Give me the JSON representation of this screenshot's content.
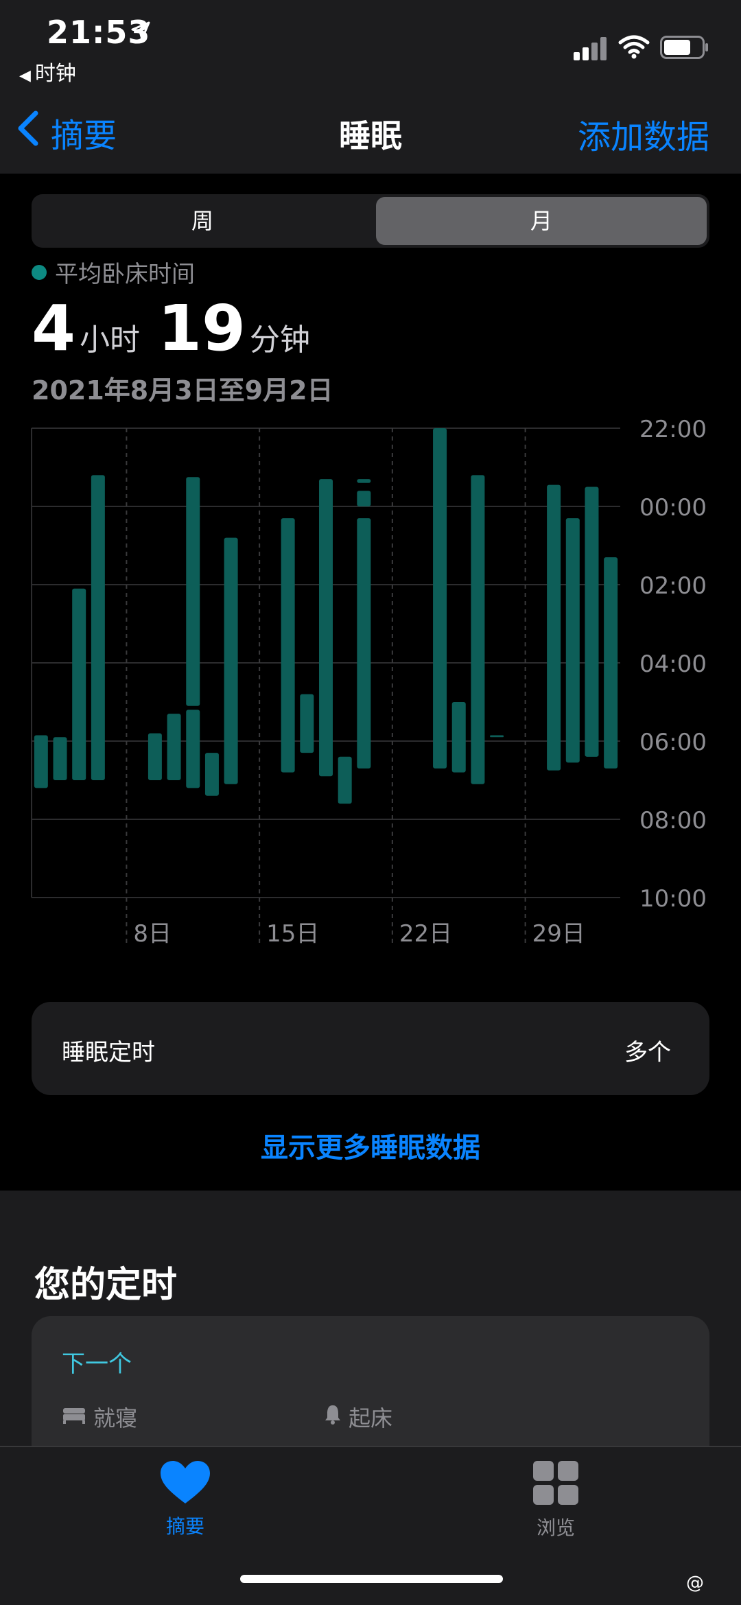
{
  "status": {
    "time": "21:53",
    "back_app": "时钟"
  },
  "nav": {
    "back": "摘要",
    "title": "睡眠",
    "add": "添加数据"
  },
  "segments": {
    "week": "周",
    "month": "月"
  },
  "summary": {
    "legend": "平均卧床时间",
    "hours": "4",
    "hours_unit": "小时",
    "minutes": "19",
    "minutes_unit": "分钟",
    "range": "2021年8月3日至9月2日"
  },
  "chart_data": {
    "type": "bar",
    "bar_color": "#0d5e58",
    "y_ticks": [
      "22:00",
      "00:00",
      "02:00",
      "04:00",
      "06:00",
      "08:00",
      "10:00"
    ],
    "ylim_hours_from_22": [
      0,
      12
    ],
    "x_ticks": [
      {
        "label": "8日",
        "day": 8
      },
      {
        "label": "15日",
        "day": 15
      },
      {
        "label": "22日",
        "day": 22
      },
      {
        "label": "29日",
        "day": 29
      }
    ],
    "day_range": [
      3,
      33
    ],
    "bars": [
      {
        "day": 3,
        "start": 7.85,
        "end": 9.2
      },
      {
        "day": 4,
        "start": 7.9,
        "end": 9.0
      },
      {
        "day": 5,
        "start": 4.1,
        "end": 9.0
      },
      {
        "day": 6,
        "start": 1.2,
        "end": 9.0
      },
      {
        "day": 9,
        "start": 7.8,
        "end": 9.0
      },
      {
        "day": 10,
        "start": 7.3,
        "end": 9.0
      },
      {
        "day": 11,
        "start": 1.25,
        "end": 7.1
      },
      {
        "day": 11,
        "start": 7.2,
        "end": 9.2
      },
      {
        "day": 12,
        "start": 8.3,
        "end": 9.4
      },
      {
        "day": 13,
        "start": 2.8,
        "end": 9.1
      },
      {
        "day": 16,
        "start": 2.3,
        "end": 8.8
      },
      {
        "day": 17,
        "start": 6.8,
        "end": 8.3
      },
      {
        "day": 18,
        "start": 1.3,
        "end": 8.9
      },
      {
        "day": 19,
        "start": 8.4,
        "end": 9.6
      },
      {
        "day": 20,
        "start": 1.3,
        "end": 1.4
      },
      {
        "day": 20,
        "start": 1.6,
        "end": 2.0
      },
      {
        "day": 20,
        "start": 2.3,
        "end": 8.7
      },
      {
        "day": 24,
        "start": 0.0,
        "end": 8.7
      },
      {
        "day": 25,
        "start": 7.0,
        "end": 8.8
      },
      {
        "day": 26,
        "start": 1.2,
        "end": 9.1
      },
      {
        "day": 27,
        "start": 7.85,
        "end": 7.9
      },
      {
        "day": 30,
        "start": 1.45,
        "end": 8.75
      },
      {
        "day": 31,
        "start": 2.3,
        "end": 8.55
      },
      {
        "day": 32,
        "start": 1.5,
        "end": 8.4
      },
      {
        "day": 32,
        "start": 2.25,
        "end": 8.4
      },
      {
        "day": 33,
        "start": 3.3,
        "end": 8.7
      }
    ]
  },
  "sleep_schedule": {
    "label": "睡眠定时",
    "value": "多个"
  },
  "show_more": "显示更多睡眠数据",
  "your_schedule": {
    "title": "您的定时",
    "next": "下一个",
    "bedtime_label": "就寝",
    "wake_label": "起床"
  },
  "tabs": {
    "summary": "摘要",
    "browse": "浏览"
  },
  "colors": {
    "accent": "#0a84ff",
    "teal": "#0d5e58",
    "next": "#40c8e0"
  },
  "watermark": "@"
}
